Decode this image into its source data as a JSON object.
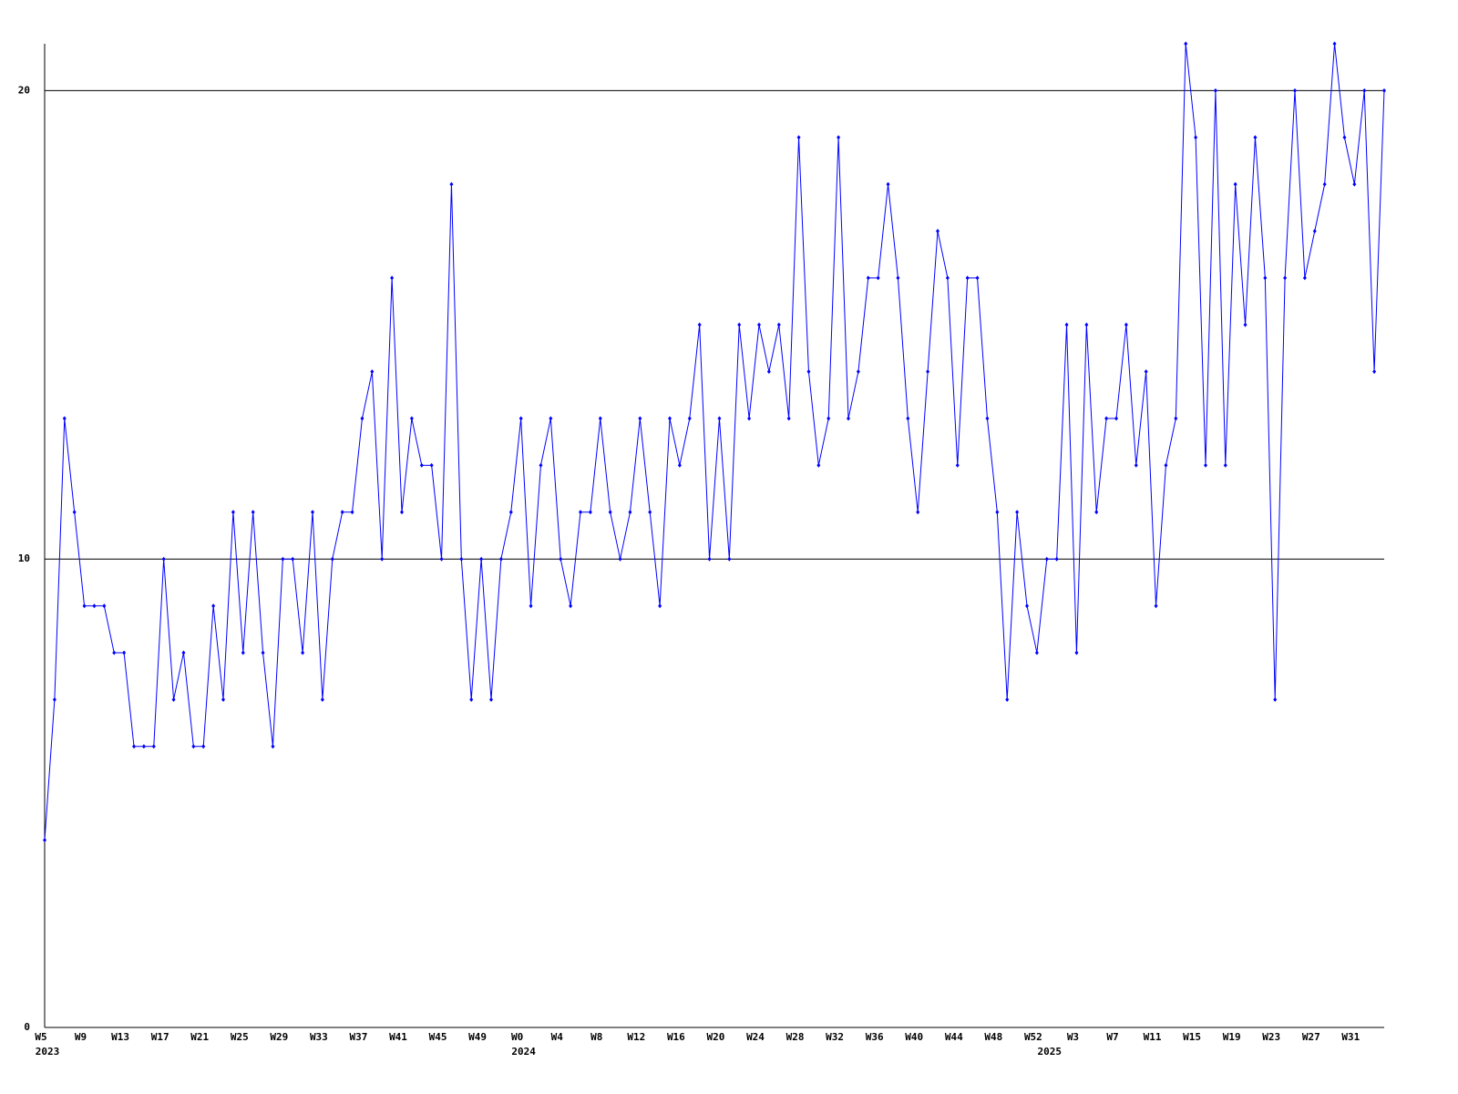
{
  "chart_data": {
    "type": "line",
    "categories": [
      "W5",
      null,
      null,
      null,
      "W9",
      null,
      null,
      null,
      "W13",
      null,
      null,
      null,
      "W17",
      null,
      null,
      null,
      "W21",
      null,
      null,
      null,
      "W25",
      null,
      null,
      null,
      "W29",
      null,
      null,
      null,
      "W33",
      null,
      null,
      null,
      "W37",
      null,
      null,
      null,
      "W41",
      null,
      null,
      null,
      "W45",
      null,
      null,
      null,
      "W49",
      null,
      null,
      null,
      "W0",
      null,
      null,
      null,
      "W4",
      null,
      null,
      null,
      "W8",
      null,
      null,
      null,
      "W12",
      null,
      null,
      null,
      "W16",
      null,
      null,
      null,
      "W20",
      null,
      null,
      null,
      "W24",
      null,
      null,
      null,
      "W28",
      null,
      null,
      null,
      "W32",
      null,
      null,
      null,
      "W36",
      null,
      null,
      null,
      "W40",
      null,
      null,
      null,
      "W44",
      null,
      null,
      null,
      "W48",
      null,
      null,
      null,
      "W52",
      null,
      null,
      null,
      "W3",
      null,
      null,
      null,
      "W7",
      null,
      null,
      null,
      "W11",
      null,
      null,
      null,
      "W15",
      null,
      null,
      null,
      "W19",
      null,
      null,
      null,
      "W23",
      null,
      null,
      null,
      "W27",
      null,
      null,
      null,
      "W31",
      null,
      null,
      null
    ],
    "years": [
      "2023",
      null,
      null,
      null,
      null,
      null,
      null,
      null,
      null,
      null,
      null,
      null,
      null,
      null,
      null,
      null,
      null,
      null,
      null,
      null,
      null,
      null,
      null,
      null,
      null,
      null,
      null,
      null,
      null,
      null,
      null,
      null,
      null,
      null,
      null,
      null,
      null,
      null,
      null,
      null,
      null,
      null,
      null,
      null,
      null,
      null,
      null,
      null,
      "2024",
      null,
      null,
      null,
      null,
      null,
      null,
      null,
      null,
      null,
      null,
      null,
      null,
      null,
      null,
      null,
      null,
      null,
      null,
      null,
      null,
      null,
      null,
      null,
      null,
      null,
      null,
      null,
      null,
      null,
      null,
      null,
      null,
      null,
      null,
      null,
      null,
      null,
      null,
      null,
      null,
      null,
      null,
      null,
      null,
      null,
      null,
      null,
      null,
      null,
      null,
      null,
      null,
      "2025",
      null,
      null,
      null,
      null,
      null,
      null,
      null,
      null,
      null,
      null,
      null,
      null,
      null,
      null,
      null,
      null,
      null,
      null,
      null,
      null,
      null,
      null,
      null,
      null,
      null,
      null,
      null,
      null,
      null,
      null,
      null,
      null,
      null,
      null
    ],
    "series": [
      {
        "color": "#0000ff",
        "values": [
          4,
          7,
          13,
          11,
          9,
          9,
          9,
          8,
          8,
          6,
          6,
          6,
          10,
          7,
          8,
          6,
          6,
          9,
          7,
          11,
          8,
          11,
          8,
          6,
          10,
          10,
          8,
          11,
          7,
          10,
          11,
          11,
          13,
          14,
          10,
          16,
          11,
          13,
          12,
          12,
          10,
          18,
          10,
          7,
          10,
          7,
          10,
          11,
          13,
          9,
          12,
          13,
          10,
          9,
          11,
          11,
          13,
          11,
          10,
          11,
          13,
          11,
          9,
          13,
          12,
          13,
          15,
          10,
          13,
          10,
          15,
          13,
          15,
          14,
          15,
          13,
          19,
          14,
          12,
          13,
          19,
          13,
          14,
          16,
          16,
          18,
          16,
          13,
          11,
          14,
          17,
          16,
          12,
          16,
          16,
          13,
          11,
          7,
          11,
          9,
          8,
          10,
          10,
          15,
          8,
          15,
          11,
          13,
          13,
          15,
          12,
          14,
          9,
          12,
          13,
          21,
          19,
          12,
          20,
          12,
          18,
          15,
          19,
          16,
          7,
          16,
          20,
          16,
          17,
          18,
          21,
          19,
          18,
          20,
          14,
          20
        ]
      }
    ],
    "ylim": [
      0,
      21
    ],
    "yticks": [
      0,
      10,
      20
    ],
    "grid": true
  }
}
